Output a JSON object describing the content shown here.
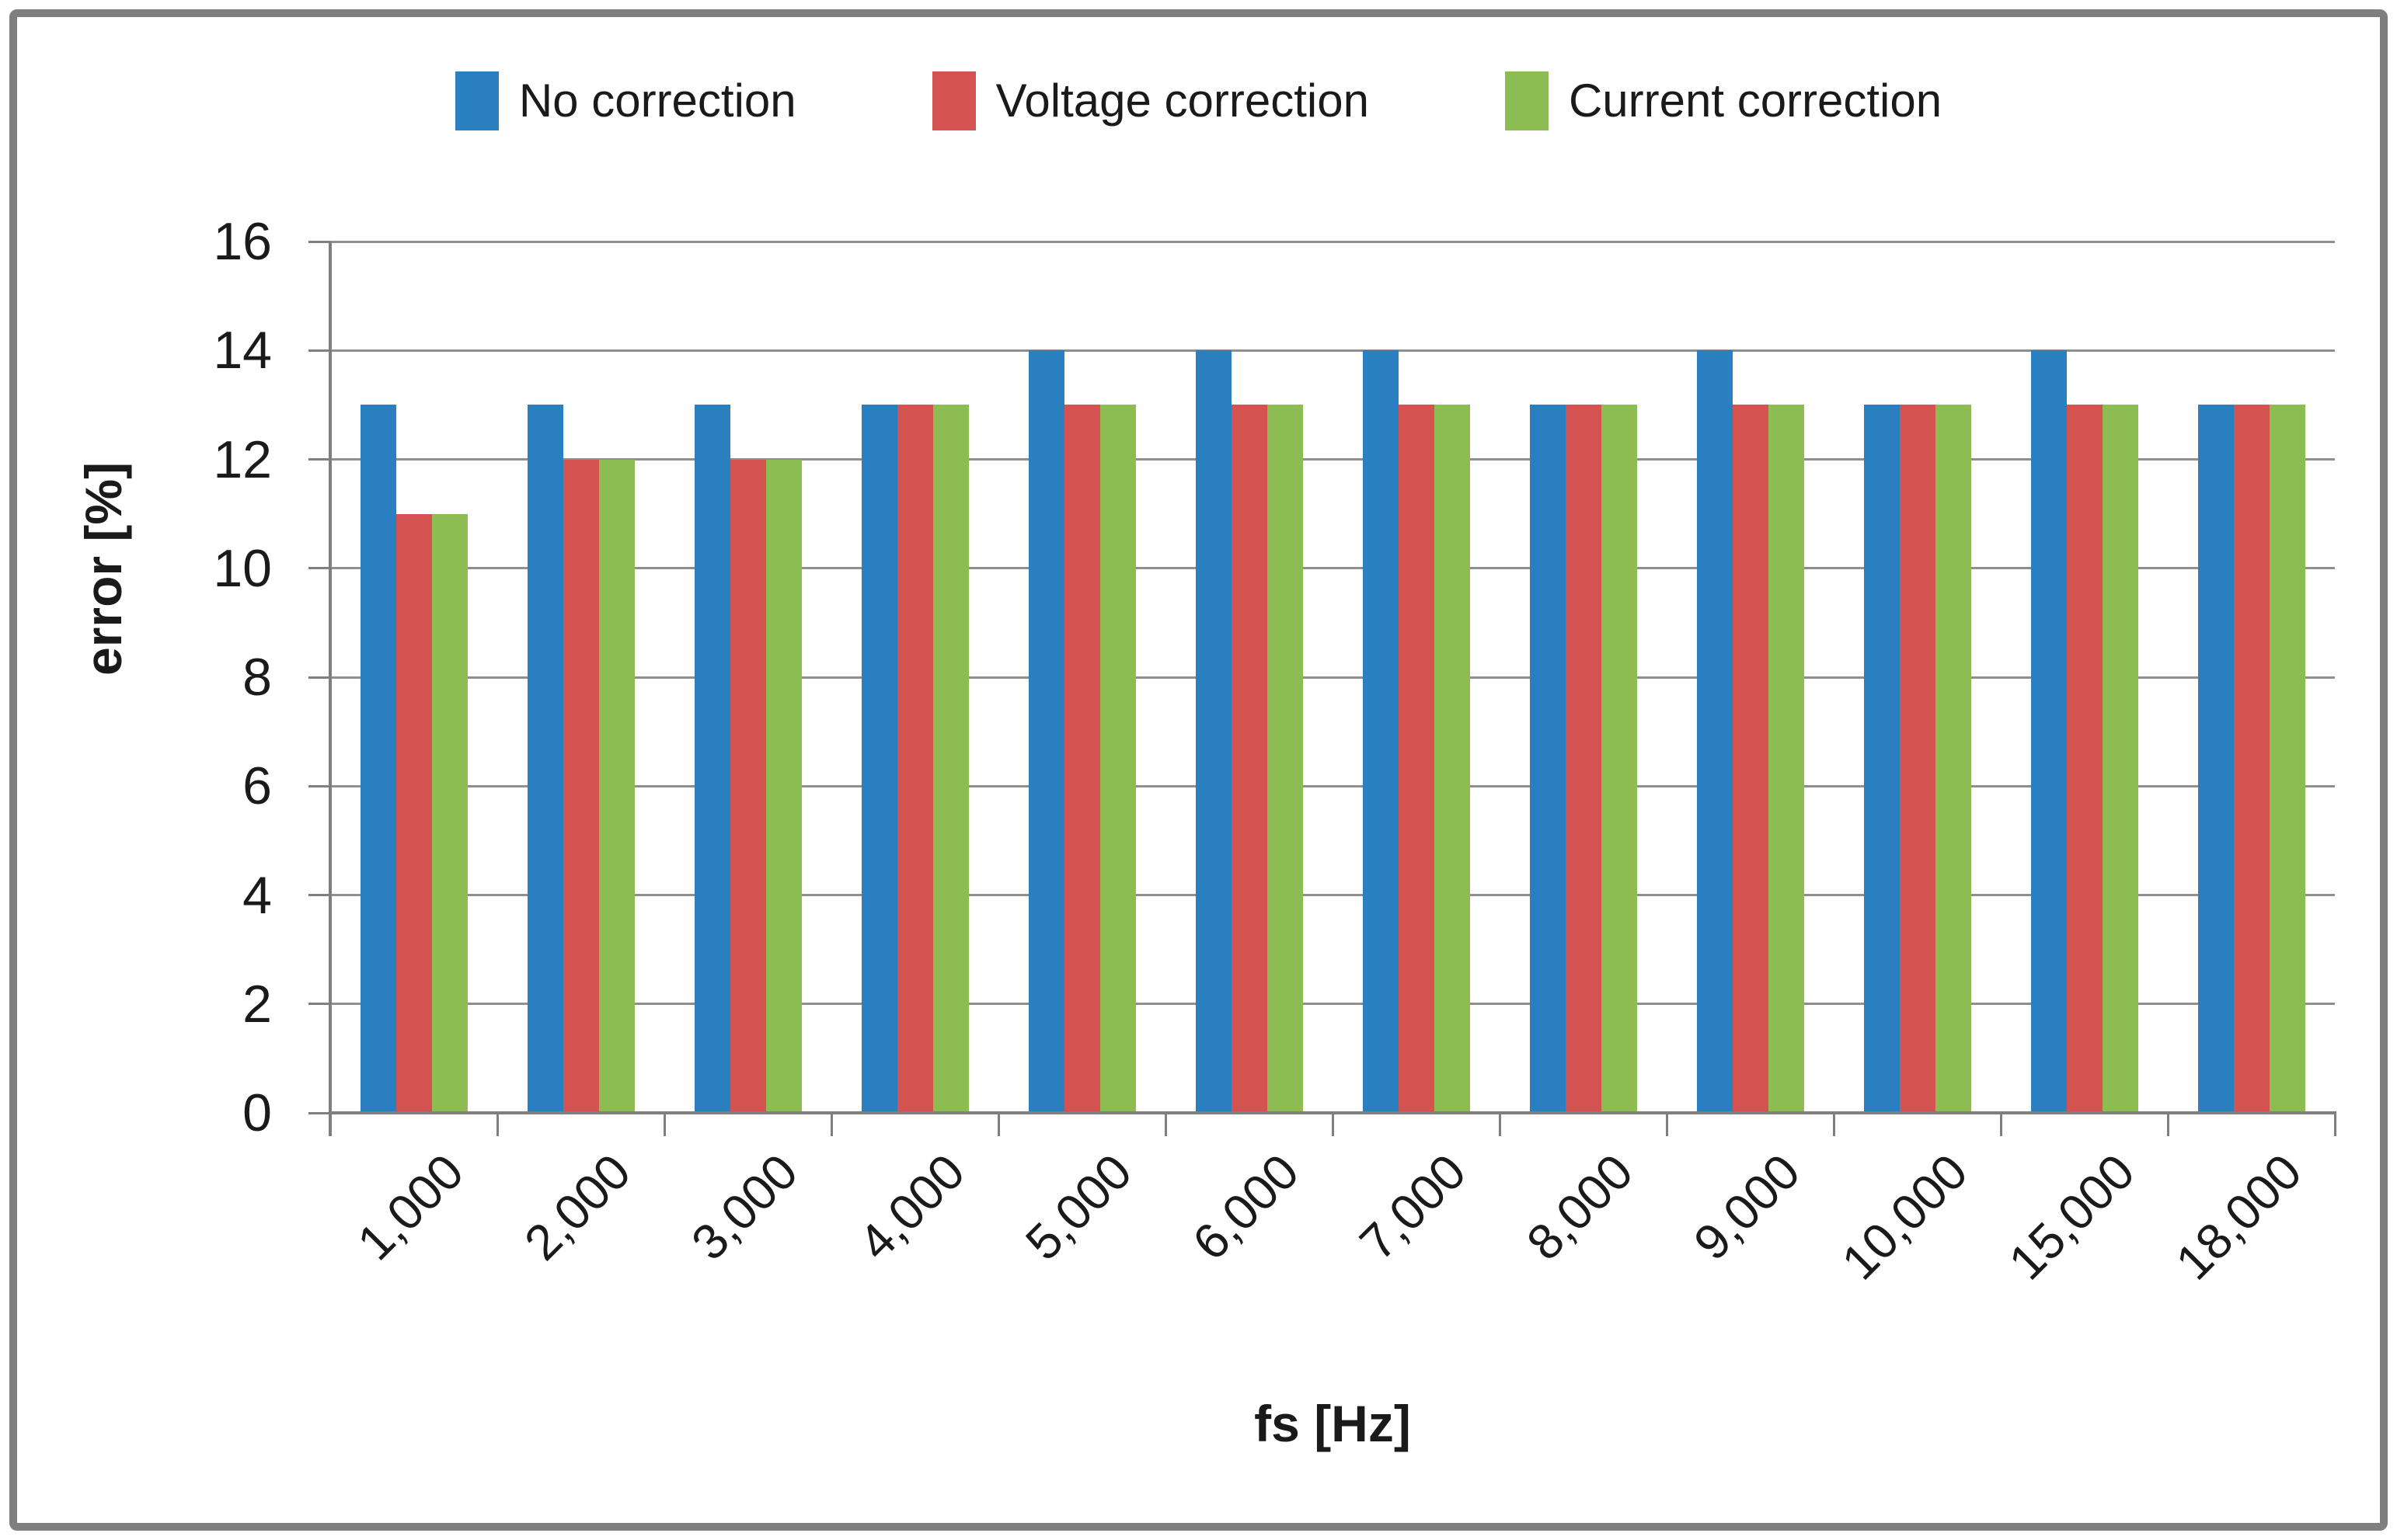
{
  "chart_data": {
    "type": "bar",
    "title": "",
    "categories": [
      "1,000",
      "2,000",
      "3,000",
      "4,000",
      "5,000",
      "6,000",
      "7,000",
      "8,000",
      "9,000",
      "10,000",
      "15,000",
      "18,000"
    ],
    "series": [
      {
        "name": "No correction",
        "color": "#2a7fc1",
        "values": [
          13,
          13,
          13,
          13,
          14,
          14,
          14,
          13,
          14,
          13,
          14,
          13
        ]
      },
      {
        "name": "Voltage correction",
        "color": "#d45250",
        "values": [
          11,
          12,
          12,
          13,
          13,
          13,
          13,
          13,
          13,
          13,
          13,
          13
        ]
      },
      {
        "name": "Current correction",
        "color": "#8dbc52",
        "values": [
          11,
          12,
          12,
          13,
          13,
          13,
          13,
          13,
          13,
          13,
          13,
          13
        ]
      }
    ],
    "xlabel": "fs [Hz]",
    "ylabel": "error [%]",
    "ylim": [
      0,
      16
    ],
    "yticks": [
      0,
      2,
      4,
      6,
      8,
      10,
      12,
      14,
      16
    ],
    "grid": true,
    "legend_position": "top",
    "colors": {
      "grid": "#8f8f8f",
      "axis": "#7f7f7f",
      "frame_border": "#7f7f7f",
      "text": "#1a1a1a",
      "background": "#ffffff"
    }
  }
}
